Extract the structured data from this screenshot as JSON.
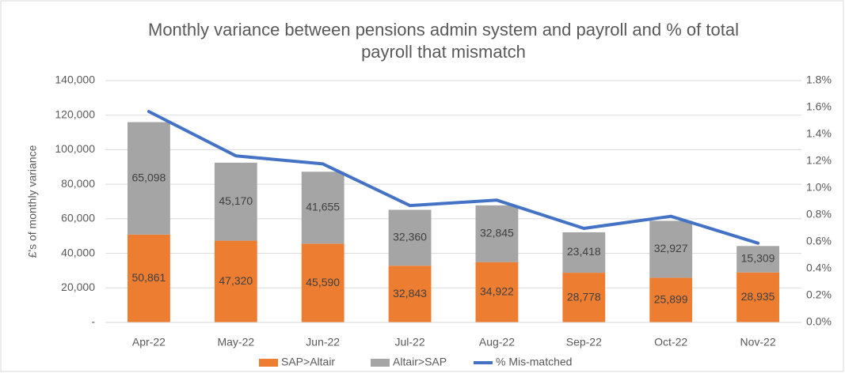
{
  "chart_data": {
    "type": "bar_line",
    "title": "Monthly variance between pensions admin system and payroll and % of total payroll that mismatch",
    "y_label": "£'s of monthly variance",
    "categories": [
      "Apr-22",
      "May-22",
      "Jun-22",
      "Jul-22",
      "Aug-22",
      "Sep-22",
      "Oct-22",
      "Nov-22"
    ],
    "series": [
      {
        "name": "SAP>Altair",
        "color": "#ed7d31",
        "type": "bar",
        "values": [
          50861,
          47320,
          45590,
          32843,
          34922,
          28778,
          25899,
          28935
        ],
        "value_labels": [
          "50,861",
          "47,320",
          "45,590",
          "32,843",
          "34,922",
          "28,778",
          "25,899",
          "28,935"
        ]
      },
      {
        "name": "Altair>SAP",
        "color": "#a5a5a5",
        "type": "bar",
        "values": [
          65098,
          45170,
          41655,
          32360,
          32845,
          23418,
          32927,
          15309
        ],
        "value_labels": [
          "65,098",
          "45,170",
          "41,655",
          "32,360",
          "32,845",
          "23,418",
          "32,927",
          "15,309"
        ]
      },
      {
        "name": "% Mis-matched",
        "color": "#4472c4",
        "type": "line",
        "axis": "y2",
        "values": [
          1.57,
          1.24,
          1.18,
          0.87,
          0.91,
          0.7,
          0.79,
          0.59
        ]
      }
    ],
    "stacked": true,
    "ylim": [
      0,
      140000
    ],
    "yticks": [
      {
        "value": 0,
        "label": "-"
      },
      {
        "value": 20000,
        "label": "20,000"
      },
      {
        "value": 40000,
        "label": "40,000"
      },
      {
        "value": 60000,
        "label": "60,000"
      },
      {
        "value": 80000,
        "label": "80,000"
      },
      {
        "value": 100000,
        "label": "100,000"
      },
      {
        "value": 120000,
        "label": "120,000"
      },
      {
        "value": 140000,
        "label": "140,000"
      }
    ],
    "y2lim": [
      0,
      1.8
    ],
    "y2ticks": [
      {
        "value": 0,
        "label": "0.0%"
      },
      {
        "value": 0.2,
        "label": "0.2%"
      },
      {
        "value": 0.4,
        "label": "0.4%"
      },
      {
        "value": 0.6,
        "label": "0.6%"
      },
      {
        "value": 0.8,
        "label": "0.8%"
      },
      {
        "value": 1.0,
        "label": "1.0%"
      },
      {
        "value": 1.2,
        "label": "1.2%"
      },
      {
        "value": 1.4,
        "label": "1.4%"
      },
      {
        "value": 1.6,
        "label": "1.6%"
      },
      {
        "value": 1.8,
        "label": "1.8%"
      }
    ],
    "grid": true,
    "legend": "bottom"
  }
}
